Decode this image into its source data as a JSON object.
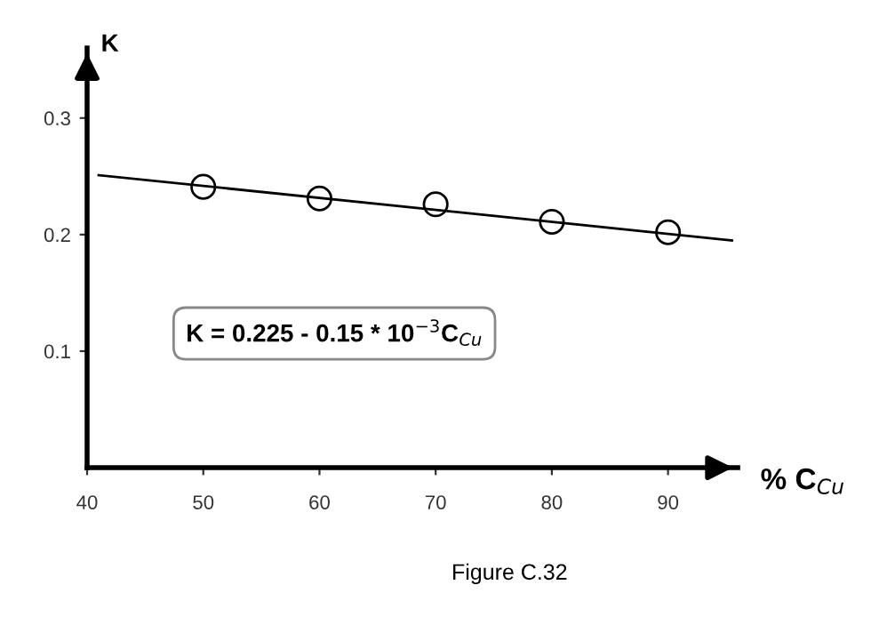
{
  "chart_data": {
    "type": "scatter",
    "xlabel": "% C$_{Cu}$",
    "ylabel": "K",
    "x": [
      50,
      60,
      70,
      80,
      90
    ],
    "series": [
      {
        "color": "#000000",
        "marker": "circle",
        "values": [
          0.241,
          0.231,
          0.226,
          0.211,
          0.202
        ]
      },
      {
        "type": "line",
        "color": "#000000",
        "marker": "none",
        "x": [
          41,
          95.5
        ],
        "values": [
          0.251,
          0.195
        ]
      }
    ],
    "xlim": [
      40,
      96
    ],
    "ylim": [
      0,
      0.36
    ],
    "xticks": [
      40,
      50,
      60,
      70,
      80,
      90
    ],
    "yticks": [
      0.1,
      0.2,
      0.3
    ],
    "grid": false,
    "legend": false,
    "annotations": [
      {
        "text": "K = 0.225 - 0.15 * 10$^{−3}$C$_{Cu}$"
      },
      {
        "text": "Figure C.32"
      }
    ]
  }
}
